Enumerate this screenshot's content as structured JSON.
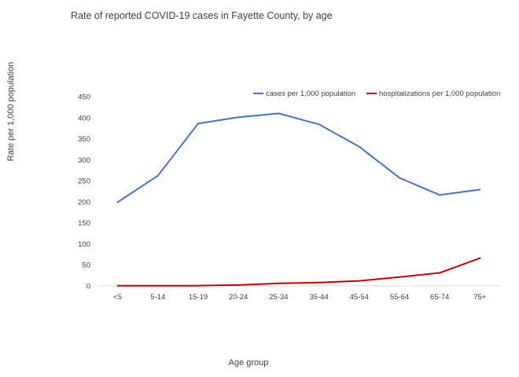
{
  "chart_data": {
    "type": "line",
    "title": "Rate of reported COVID-19 cases in Fayette County, by age",
    "xlabel": "Age group",
    "ylabel": "Rate per 1,000 population",
    "categories": [
      "<5",
      "5-14",
      "15-19",
      "20-24",
      "25-34",
      "35-44",
      "45-54",
      "55-64",
      "65-74",
      "75+"
    ],
    "ylim": [
      0,
      450
    ],
    "yticks": [
      0,
      50,
      100,
      150,
      200,
      250,
      300,
      350,
      400,
      450
    ],
    "grid": false,
    "legend_position": "top-right",
    "series": [
      {
        "name": "cases per 1,000 population",
        "color": "#4472C4",
        "values": [
          199,
          262,
          386,
          401,
          410,
          384,
          331,
          257,
          216,
          229
        ]
      },
      {
        "name": "hospitalizations per 1,000 population",
        "color": "#C00000",
        "values": [
          0.5,
          0.5,
          0.5,
          2,
          6,
          8,
          12,
          21,
          31,
          66
        ]
      }
    ]
  }
}
